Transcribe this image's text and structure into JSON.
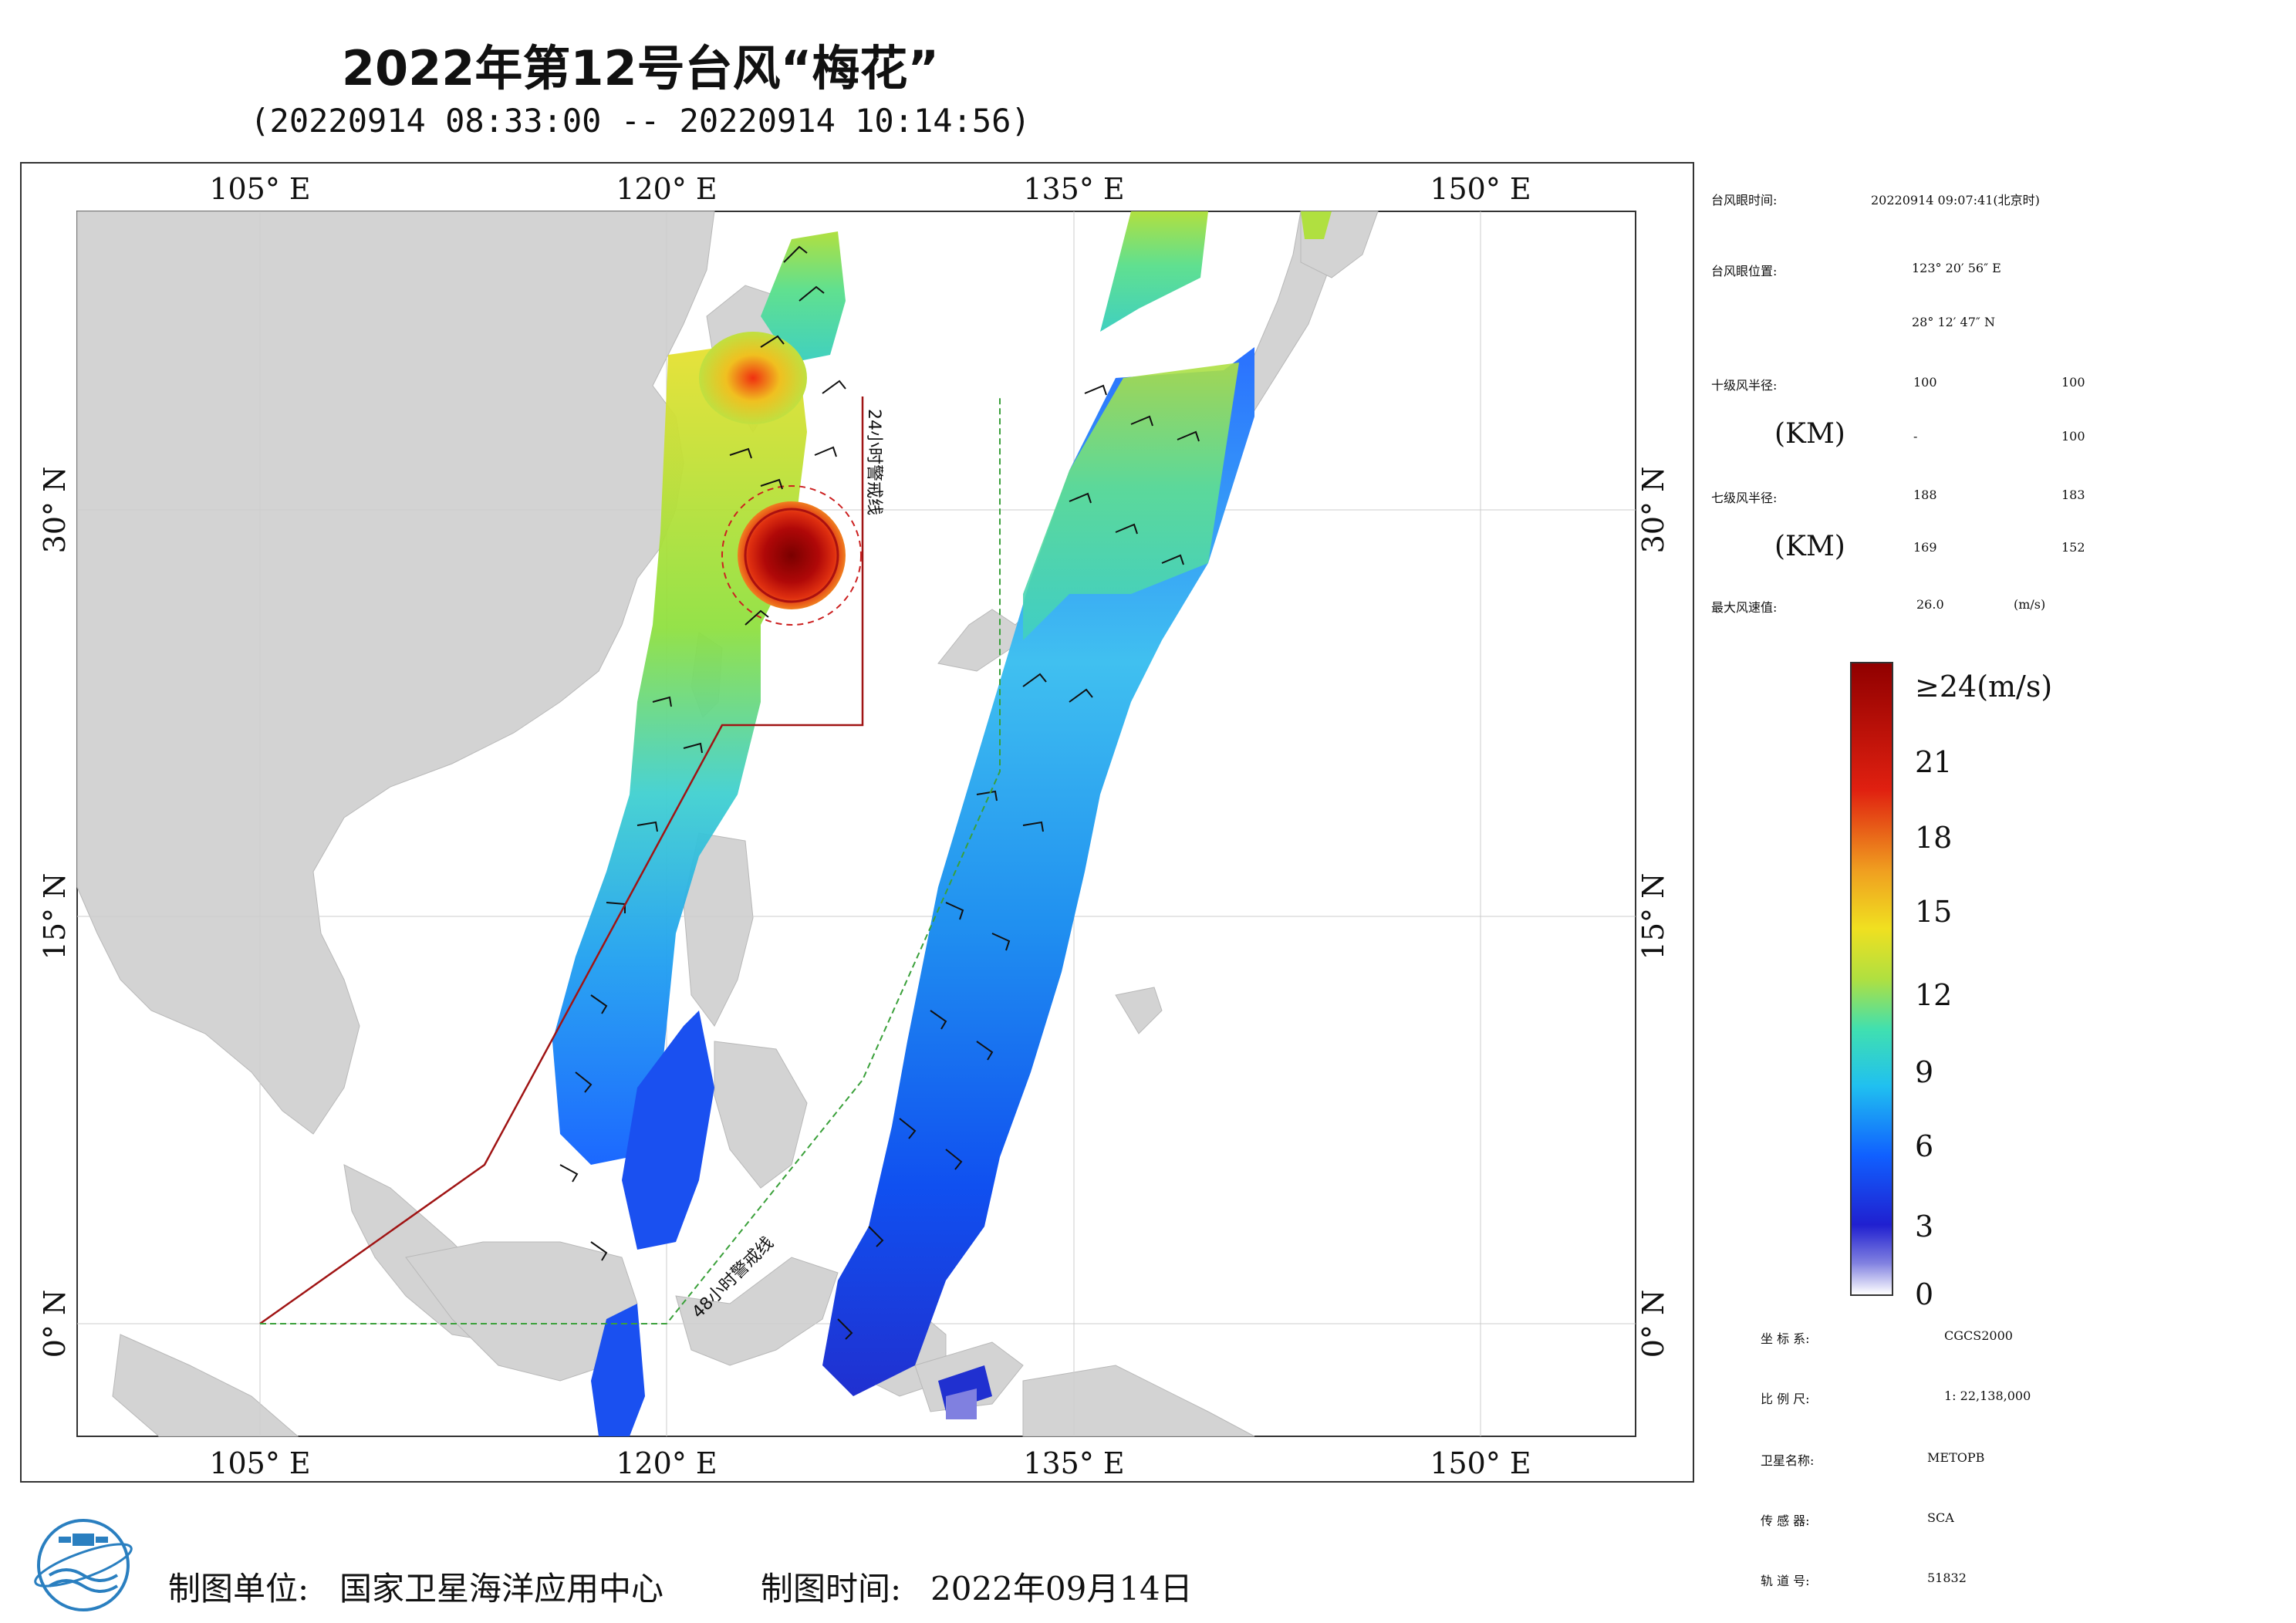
{
  "title": "2022年第12号台风“梅花”",
  "subtitle": "(20220914 08:33:00 -- 20220914 10:14:56)",
  "map": {
    "lon_ticks": [
      "105° E",
      "120° E",
      "135° E",
      "150° E"
    ],
    "lat_ticks": [
      "30° N",
      "15° N",
      "0° N"
    ],
    "warning_lines": [
      "24小时警戒线",
      "48小时警戒线"
    ],
    "colors": {
      "land": "#d3d3d3",
      "ocean": "#ffffff",
      "line_24h": "#a01414",
      "line_48h": "#3aa03a",
      "typhoon_core": "#8b0000"
    }
  },
  "info_panel": {
    "eye_time_label": "台风眼时间:",
    "eye_time_value": "20220914 09:07:41(北京时)",
    "eye_position_label": "台风眼位置:",
    "eye_lon": "123° 20′ 56″ E",
    "eye_lat": "28° 12′ 47″ N",
    "r10_label": "十级风半径:",
    "r10_unit": "(KM)",
    "r10_values": [
      "100",
      "100",
      "-",
      "100"
    ],
    "r7_label": "七级风半径:",
    "r7_unit": "(KM)",
    "r7_values": [
      "188",
      "183",
      "169",
      "152"
    ],
    "max_wind_label": "最大风速值:",
    "max_wind_value": "26.0",
    "max_wind_unit": "(m/s)"
  },
  "colorbar": {
    "labels": [
      "≥24(m/s)",
      "21",
      "18",
      "15",
      "12",
      "9",
      "6",
      "3",
      "0"
    ],
    "min": 0,
    "max": 24
  },
  "meta": {
    "crs_label": "坐 标 系:",
    "crs_value": "CGCS2000",
    "scale_label": "比 例 尺:",
    "scale_value": "1: 22,138,000",
    "satellite_label": "卫星名称:",
    "satellite_value": "METOPB",
    "sensor_label": "传 感 器:",
    "sensor_value": "SCA",
    "orbit_label": "轨 道 号:",
    "orbit_value": "51832"
  },
  "footer": {
    "producer_label": "制图单位:",
    "producer_value": "国家卫星海洋应用中心",
    "date_label": "制图时间:",
    "date_value": "2022年09月14日"
  }
}
